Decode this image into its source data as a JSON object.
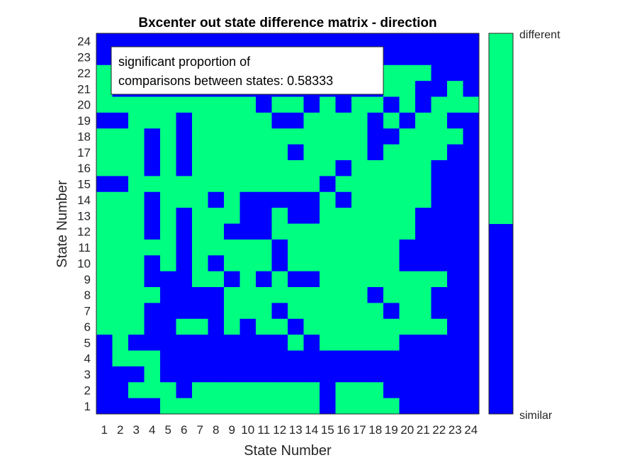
{
  "chart_data": {
    "type": "heatmap",
    "title": "Bxcenter out state difference matrix - direction",
    "xlabel": "State Number",
    "ylabel": "State Number",
    "x_ticks": [
      "1",
      "2",
      "3",
      "4",
      "5",
      "6",
      "7",
      "8",
      "9",
      "10",
      "11",
      "12",
      "13",
      "14",
      "15",
      "16",
      "17",
      "18",
      "19",
      "20",
      "21",
      "22",
      "23",
      "24"
    ],
    "y_ticks": [
      "1",
      "2",
      "3",
      "4",
      "5",
      "6",
      "7",
      "8",
      "9",
      "10",
      "11",
      "12",
      "13",
      "14",
      "15",
      "16",
      "17",
      "18",
      "19",
      "20",
      "21",
      "22",
      "23",
      "24"
    ],
    "y_direction": "normal",
    "colorbar": {
      "labels": [
        "similar",
        "different"
      ],
      "colors": {
        "similar": "#0000FF",
        "different": "#00FF80"
      }
    },
    "annotation": {
      "line1": "significant proportion of",
      "line2": "comparisons between states: 0.58333"
    },
    "matrix_rows_top_to_bottom": [
      "111111111111111111111111",
      "111111111111111111111111",
      "011111111111111111000111",
      "011111111111111111001101",
      "000000000010010100101000",
      "110001000001100001010011",
      "000101000000000001100001",
      "000101000000100001000011",
      "000101000000000100000111",
      "110000000000001000000111",
      "000100010111110100000111",
      "000101000110110000001111",
      "000101001110000000001111",
      "000001000001000000011111",
      "000101010001000000011111",
      "000111001010110000000011",
      "000011110000000001000111",
      "000111110001000000100111",
      "000110010100100000000011",
      "101111111111010000011111",
      "100011111111111111111111",
      "111011111111111111111111",
      "110001000000001000111111",
      "111100000000001000011111"
    ]
  }
}
